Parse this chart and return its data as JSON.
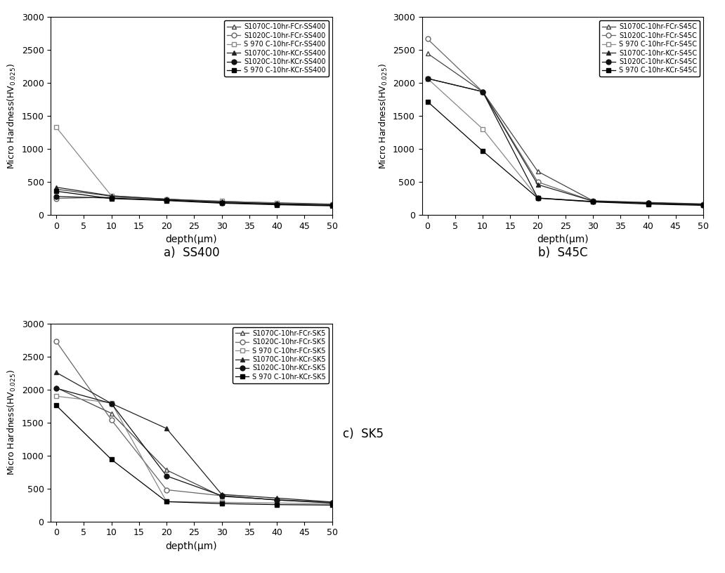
{
  "depth_x": [
    0,
    10,
    20,
    30,
    40,
    50
  ],
  "subplot_a": {
    "label": "a)  SS400",
    "series": [
      {
        "label": "S1070C-10hr-FCr-SS400",
        "marker": "^",
        "filled": false,
        "color": "#444444",
        "data": [
          390,
          285,
          235,
          205,
          185,
          165
        ]
      },
      {
        "label": "S1020C-10hr-FCr-SS400",
        "marker": "o",
        "filled": false,
        "color": "#666666",
        "data": [
          250,
          270,
          240,
          195,
          175,
          160
        ]
      },
      {
        "label": "S 970 C-10hr-FCr-SS400",
        "marker": "s",
        "filled": false,
        "color": "#888888",
        "data": [
          1330,
          290,
          240,
          210,
          178,
          152
        ]
      },
      {
        "label": "S1070C-10hr-KCr-SS400",
        "marker": "^",
        "filled": true,
        "color": "#222222",
        "data": [
          420,
          290,
          238,
          200,
          172,
          152
        ]
      },
      {
        "label": "S1020C-10hr-KCr-SS400",
        "marker": "o",
        "filled": true,
        "color": "#111111",
        "data": [
          280,
          255,
          225,
          185,
          162,
          145
        ]
      },
      {
        "label": "S 970 C-10hr-KCr-SS400",
        "marker": "s",
        "filled": true,
        "color": "#000000",
        "data": [
          360,
          248,
          218,
          178,
          155,
          138
        ]
      }
    ]
  },
  "subplot_b": {
    "label": "b)  S45C",
    "series": [
      {
        "label": "S1070C-10hr-FCr-S45C",
        "marker": "^",
        "filled": false,
        "color": "#444444",
        "data": [
          2450,
          1870,
          660,
          215,
          190,
          168
        ]
      },
      {
        "label": "S1020C-10hr-FCr-S45C",
        "marker": "o",
        "filled": false,
        "color": "#666666",
        "data": [
          2670,
          1870,
          500,
          210,
          183,
          162
        ]
      },
      {
        "label": "S 970 C-10hr-FCr-S45C",
        "marker": "s",
        "filled": false,
        "color": "#888888",
        "data": [
          2070,
          1305,
          260,
          200,
          175,
          155
        ]
      },
      {
        "label": "S1070C-10hr-KCr-S45C",
        "marker": "^",
        "filled": true,
        "color": "#222222",
        "data": [
          2070,
          1870,
          460,
          210,
          183,
          160
        ]
      },
      {
        "label": "S1020C-10hr-KCr-S45C",
        "marker": "o",
        "filled": true,
        "color": "#111111",
        "data": [
          2070,
          1870,
          255,
          205,
          178,
          155
        ]
      },
      {
        "label": "S 970 C-10hr-KCr-S45C",
        "marker": "s",
        "filled": true,
        "color": "#000000",
        "data": [
          1720,
          970,
          255,
          198,
          165,
          145
        ]
      }
    ]
  },
  "subplot_c": {
    "label": "c)  SK5",
    "series": [
      {
        "label": "S1070C-10hr-FCr-SK5",
        "marker": "^",
        "filled": false,
        "color": "#444444",
        "data": [
          2030,
          1640,
          780,
          380,
          330,
          290
        ]
      },
      {
        "label": "S1020C-10hr-FCr-SK5",
        "marker": "o",
        "filled": false,
        "color": "#666666",
        "data": [
          2730,
          1540,
          480,
          390,
          325,
          285
        ]
      },
      {
        "label": "S 970 C-10hr-FCr-SK5",
        "marker": "s",
        "filled": false,
        "color": "#888888",
        "data": [
          1900,
          1800,
          300,
          290,
          280,
          265
        ]
      },
      {
        "label": "S1070C-10hr-KCr-SK5",
        "marker": "^",
        "filled": true,
        "color": "#222222",
        "data": [
          2260,
          1790,
          1410,
          410,
          355,
          295
        ]
      },
      {
        "label": "S1020C-10hr-KCr-SK5",
        "marker": "o",
        "filled": true,
        "color": "#111111",
        "data": [
          2020,
          1790,
          690,
          390,
          325,
          280
        ]
      },
      {
        "label": "S 970 C-10hr-KCr-SK5",
        "marker": "s",
        "filled": true,
        "color": "#000000",
        "data": [
          1760,
          940,
          300,
          270,
          255,
          248
        ]
      }
    ]
  },
  "ylabel": "Micro Hardness(HV$_{0.025}$)",
  "xlabel": "depth(μm)",
  "ylim": [
    0,
    3000
  ],
  "xlim": [
    -1,
    50
  ],
  "xticks": [
    0,
    5,
    10,
    15,
    20,
    25,
    30,
    35,
    40,
    45,
    50
  ],
  "yticks": [
    0,
    500,
    1000,
    1500,
    2000,
    2500,
    3000
  ]
}
